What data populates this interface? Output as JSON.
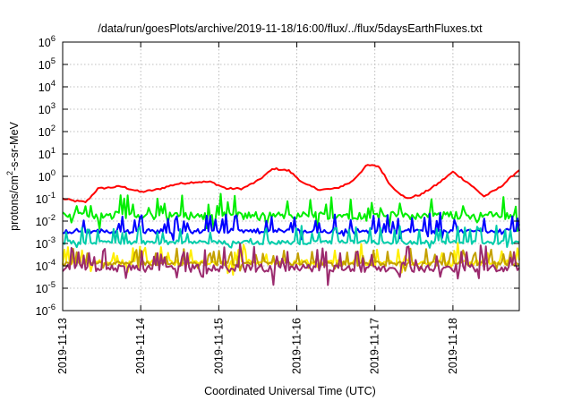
{
  "chart_data": {
    "type": "line",
    "title": "/data/run/goesPlots/archive/2019-11-18/16:00/flux/../flux/5daysEarthFluxes.txt",
    "xlabel": "Coordinated Universal Time (UTC)",
    "ylabel": {
      "base": "protons/cm",
      "sup": "2",
      "rest": "-s-sr-MeV"
    },
    "yscale": "log",
    "ylim": [
      1e-06,
      1000000.0
    ],
    "xlim_days": [
      0,
      5.85
    ],
    "grid": true,
    "y_ticks": [
      {
        "base": "10",
        "exp": "-6",
        "value": -6
      },
      {
        "base": "10",
        "exp": "-5",
        "value": -5
      },
      {
        "base": "10",
        "exp": "-4",
        "value": -4
      },
      {
        "base": "10",
        "exp": "-3",
        "value": -3
      },
      {
        "base": "10",
        "exp": "-2",
        "value": -2
      },
      {
        "base": "10",
        "exp": "-1",
        "value": -1
      },
      {
        "base": "10",
        "exp": "0",
        "value": 0
      },
      {
        "base": "10",
        "exp": "1",
        "value": 1
      },
      {
        "base": "10",
        "exp": "2",
        "value": 2
      },
      {
        "base": "10",
        "exp": "3",
        "value": 3
      },
      {
        "base": "10",
        "exp": "4",
        "value": 4
      },
      {
        "base": "10",
        "exp": "5",
        "value": 5
      },
      {
        "base": "10",
        "exp": "6",
        "value": 6
      }
    ],
    "x_ticks": [
      {
        "label": "2019-11-13",
        "day": 0
      },
      {
        "label": "2019-11-14",
        "day": 1
      },
      {
        "label": "2019-11-15",
        "day": 2
      },
      {
        "label": "2019-11-16",
        "day": 3
      },
      {
        "label": "2019-11-17",
        "day": 4
      },
      {
        "label": "2019-11-18",
        "day": 5
      }
    ],
    "series": [
      {
        "color": "#ff0000",
        "base": -1.05,
        "noise": 0.08,
        "kind": "smooth",
        "points": [
          [
            0,
            -1.0
          ],
          [
            0.15,
            -1.1
          ],
          [
            0.3,
            -1.15
          ],
          [
            0.45,
            -0.55
          ],
          [
            0.75,
            -0.45
          ],
          [
            1.0,
            -0.7
          ],
          [
            1.2,
            -0.6
          ],
          [
            1.45,
            -0.35
          ],
          [
            1.7,
            -0.25
          ],
          [
            1.9,
            -0.25
          ],
          [
            2.1,
            -0.55
          ],
          [
            2.3,
            -0.55
          ],
          [
            2.5,
            -0.2
          ],
          [
            2.7,
            0.35
          ],
          [
            2.9,
            0.25
          ],
          [
            3.1,
            -0.35
          ],
          [
            3.3,
            -0.6
          ],
          [
            3.5,
            -0.55
          ],
          [
            3.7,
            -0.25
          ],
          [
            3.9,
            0.5
          ],
          [
            4.05,
            0.45
          ],
          [
            4.2,
            -0.4
          ],
          [
            4.4,
            -1.0
          ],
          [
            4.6,
            -0.8
          ],
          [
            4.8,
            -0.35
          ],
          [
            5.0,
            0.2
          ],
          [
            5.2,
            -0.3
          ],
          [
            5.4,
            -0.9
          ],
          [
            5.6,
            -0.5
          ],
          [
            5.85,
            0.3
          ]
        ]
      },
      {
        "color": "#00ee00",
        "base": -1.75,
        "noise": 0.35,
        "kind": "spiky"
      },
      {
        "color": "#0000ff",
        "base": -2.45,
        "noise": 0.22,
        "kind": "spiky"
      },
      {
        "color": "#00ccaa",
        "base": -2.95,
        "noise": 0.18,
        "kind": "spiky"
      },
      {
        "color": "#ffee00",
        "base": -3.85,
        "noise": 0.25,
        "kind": "spiky"
      },
      {
        "color": "#c4a000",
        "base": -3.9,
        "noise": 0.2,
        "kind": "spiky"
      },
      {
        "color": "#9b2a6e",
        "base": -4.1,
        "noise": 0.35,
        "kind": "spiky"
      }
    ]
  }
}
